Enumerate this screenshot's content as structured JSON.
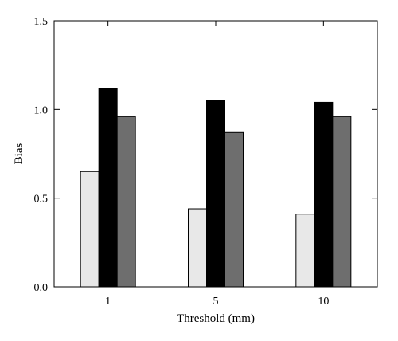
{
  "chart_data": {
    "type": "bar",
    "title": "",
    "xlabel": "Threshold (mm)",
    "ylabel": "Bias",
    "categories": [
      "1",
      "5",
      "10"
    ],
    "ylim": [
      0,
      1.5
    ],
    "yticks": [
      "0.0",
      "0.5",
      "1.0",
      "1.5"
    ],
    "yticks_values": [
      0,
      0.5,
      1.0,
      1.5
    ],
    "grid": false,
    "legend": "none",
    "series": [
      {
        "values": [
          0.65,
          0.44,
          0.41
        ],
        "color": "#e8e8e8"
      },
      {
        "values": [
          1.12,
          1.05,
          1.04
        ],
        "color": "#000000"
      },
      {
        "values": [
          0.96,
          0.87,
          0.96
        ],
        "color": "#6e6e6e"
      }
    ]
  }
}
